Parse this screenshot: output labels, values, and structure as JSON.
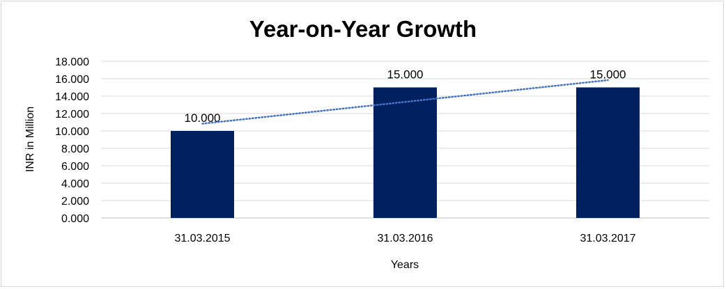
{
  "chart_data": {
    "type": "bar",
    "title": "Year-on-Year Growth",
    "xlabel": "Years",
    "ylabel": "INR in Million",
    "categories": [
      "31.03.2015",
      "31.03.2016",
      "31.03.2017"
    ],
    "values": [
      10,
      15,
      15
    ],
    "data_labels": [
      "10.000",
      "15.000",
      "15.000"
    ],
    "ylim": [
      0,
      18
    ],
    "yticks": [
      0,
      2,
      4,
      6,
      8,
      10,
      12,
      14,
      16,
      18
    ],
    "ytick_labels": [
      "0.000",
      "2.000",
      "4.000",
      "6.000",
      "8.000",
      "10.000",
      "12.000",
      "14.000",
      "16.000",
      "18.000"
    ],
    "grid": true,
    "legend": "none",
    "trendline": "linear dotted",
    "colors": {
      "bar": "#002060",
      "trendline": "#4472c4",
      "grid": "#d9d9d9"
    }
  }
}
